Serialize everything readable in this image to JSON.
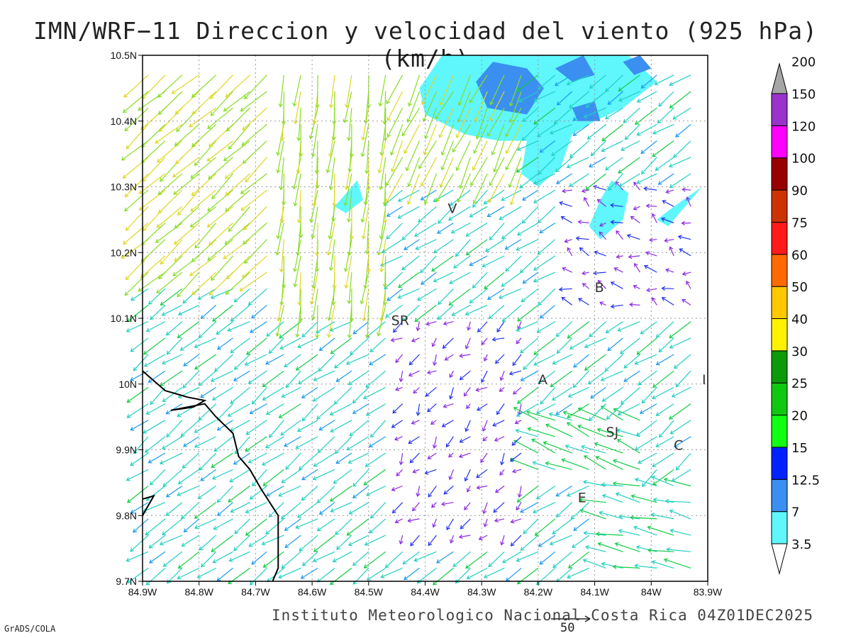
{
  "title": "IMN/WRF−11 Direccion y velocidad del viento (925 hPa)(km/h)",
  "footer_credit": "Instituto Meteorologico Nacional Costa Rica 04Z01DEC2025",
  "grads_credit": "GrADS/COLA",
  "reference_vector_label": "50",
  "map": {
    "lon_range": [
      -84.9,
      -83.9
    ],
    "lat_range": [
      9.7,
      10.5
    ],
    "x_ticks": [
      {
        "lon": -84.9,
        "label": "84.9W"
      },
      {
        "lon": -84.8,
        "label": "84.8W"
      },
      {
        "lon": -84.7,
        "label": "84.7W"
      },
      {
        "lon": -84.6,
        "label": "84.6W"
      },
      {
        "lon": -84.5,
        "label": "84.5W"
      },
      {
        "lon": -84.4,
        "label": "84.4W"
      },
      {
        "lon": -84.3,
        "label": "84.3W"
      },
      {
        "lon": -84.2,
        "label": "84.2W"
      },
      {
        "lon": -84.1,
        "label": "84.1W"
      },
      {
        "lon": -84.0,
        "label": "84W"
      },
      {
        "lon": -83.9,
        "label": "83.9W"
      }
    ],
    "y_ticks": [
      {
        "lat": 10.5,
        "label": "10.5N"
      },
      {
        "lat": 10.4,
        "label": "10.4N"
      },
      {
        "lat": 10.3,
        "label": "10.3N"
      },
      {
        "lat": 10.2,
        "label": "10.2N"
      },
      {
        "lat": 10.1,
        "label": "10.1N"
      },
      {
        "lat": 10.0,
        "label": "10N"
      },
      {
        "lat": 9.9,
        "label": "9.9N"
      },
      {
        "lat": 9.8,
        "label": "9.8N"
      },
      {
        "lat": 9.7,
        "label": "9.7N"
      }
    ],
    "grid": true,
    "places": [
      {
        "label": "V",
        "lon": -84.36,
        "lat": 10.26
      },
      {
        "label": "SR",
        "lon": -84.46,
        "lat": 10.09
      },
      {
        "label": "B",
        "lon": -84.1,
        "lat": 10.14
      },
      {
        "label": "A",
        "lon": -84.2,
        "lat": 10.0
      },
      {
        "label": "I",
        "lon": -83.91,
        "lat": 10.0
      },
      {
        "label": "SJ",
        "lon": -84.08,
        "lat": 9.92
      },
      {
        "label": "C",
        "lon": -83.96,
        "lat": 9.9
      },
      {
        "label": "E",
        "lon": -84.13,
        "lat": 9.82
      }
    ],
    "coastline": [
      [
        -84.9,
        10.02
      ],
      [
        -84.86,
        9.99
      ],
      [
        -84.82,
        9.98
      ],
      [
        -84.79,
        9.975
      ],
      [
        -84.81,
        9.965
      ],
      [
        -84.85,
        9.96
      ],
      [
        -84.79,
        9.97
      ],
      [
        -84.77,
        9.95
      ],
      [
        -84.74,
        9.925
      ],
      [
        -84.73,
        9.89
      ],
      [
        -84.71,
        9.87
      ],
      [
        -84.69,
        9.84
      ],
      [
        -84.66,
        9.8
      ],
      [
        -84.66,
        9.72
      ],
      [
        -84.67,
        9.7
      ]
    ],
    "coastline_2": [
      [
        -84.9,
        9.825
      ],
      [
        -84.88,
        9.83
      ],
      [
        -84.9,
        9.8
      ]
    ],
    "shaded_regions": [
      {
        "name": "northeast-cloud",
        "color": "#5ff6fc",
        "lon": [
          -84.42,
          -83.98
        ],
        "lat": [
          10.28,
          10.5
        ]
      },
      {
        "name": "core",
        "color": "#3a8ff0",
        "lon": [
          -84.29,
          -84.18
        ],
        "lat": [
          10.42,
          10.48
        ]
      }
    ],
    "wind_field_note": "Vectors colored by speed class"
  },
  "colorbar": {
    "levels": [
      "3.5",
      "7",
      "12.5",
      "15",
      "20",
      "25",
      "30",
      "40",
      "50",
      "60",
      "75",
      "90",
      "100",
      "120",
      "150",
      "200"
    ],
    "colors": [
      "#5ff6fc",
      "#3a8ff0",
      "#0022ff",
      "#11ff11",
      "#10c810",
      "#0a9a0a",
      "#fff200",
      "#ffc800",
      "#ff6a00",
      "#ff1a1a",
      "#cc3300",
      "#990000",
      "#ff00ff",
      "#9933cc",
      "#f2f2f2",
      "#a6a6a6"
    ]
  }
}
